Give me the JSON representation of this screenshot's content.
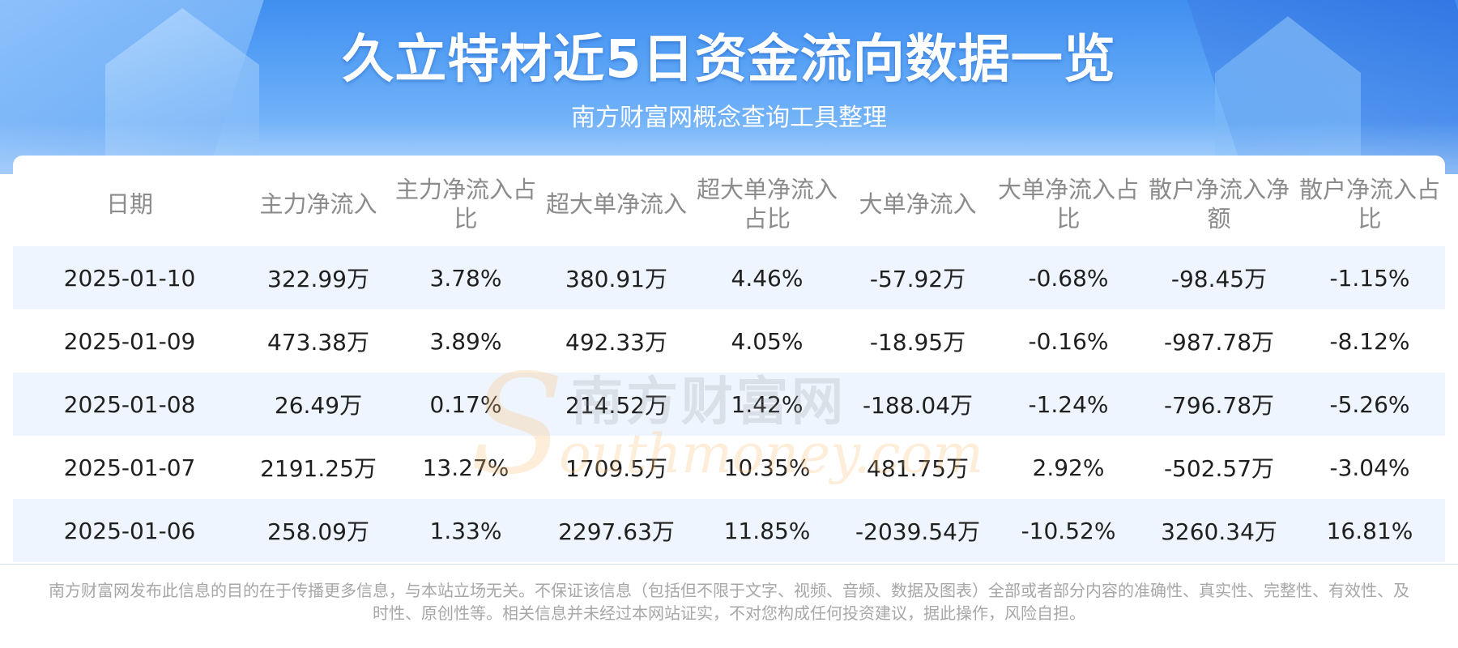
{
  "header": {
    "title": "久立特材近5日资金流向数据一览",
    "subtitle": "南方财富网概念查询工具整理"
  },
  "table": {
    "columns": [
      "日期",
      "主力净流入",
      "主力净流入占比",
      "超大单净流入",
      "超大单净流入占比",
      "大单净流入",
      "大单净流入占比",
      "散户净流入净额",
      "散户净流入占比"
    ],
    "rows": [
      [
        "2025-01-10",
        "322.99万",
        "3.78%",
        "380.91万",
        "4.46%",
        "-57.92万",
        "-0.68%",
        "-98.45万",
        "-1.15%"
      ],
      [
        "2025-01-09",
        "473.38万",
        "3.89%",
        "492.33万",
        "4.05%",
        "-18.95万",
        "-0.16%",
        "-987.78万",
        "-8.12%"
      ],
      [
        "2025-01-08",
        "26.49万",
        "0.17%",
        "214.52万",
        "1.42%",
        "-188.04万",
        "-1.24%",
        "-796.78万",
        "-5.26%"
      ],
      [
        "2025-01-07",
        "2191.25万",
        "13.27%",
        "1709.5万",
        "10.35%",
        "481.75万",
        "2.92%",
        "-502.57万",
        "-3.04%"
      ],
      [
        "2025-01-06",
        "258.09万",
        "1.33%",
        "2297.63万",
        "11.85%",
        "-2039.54万",
        "-10.52%",
        "3260.34万",
        "16.81%"
      ]
    ]
  },
  "watermark": {
    "letter": "S",
    "cn": "南方财富网",
    "en": "outhmoney.com"
  },
  "footer": {
    "disclaimer": "南方财富网发布此信息的目的在于传播更多信息，与本站立场无关。不保证该信息（包括但不限于文字、视频、音频、数据及图表）全部或者部分内容的准确性、真实性、完整性、有效性、及时性、原创性等。相关信息并未经过本网站证实，不对您构成任何投资建议，据此操作，风险自担。"
  },
  "colors": {
    "header_blue": "#3f8ef0",
    "row_alt": "#eef5fe",
    "header_text": "#8b8b8b"
  }
}
